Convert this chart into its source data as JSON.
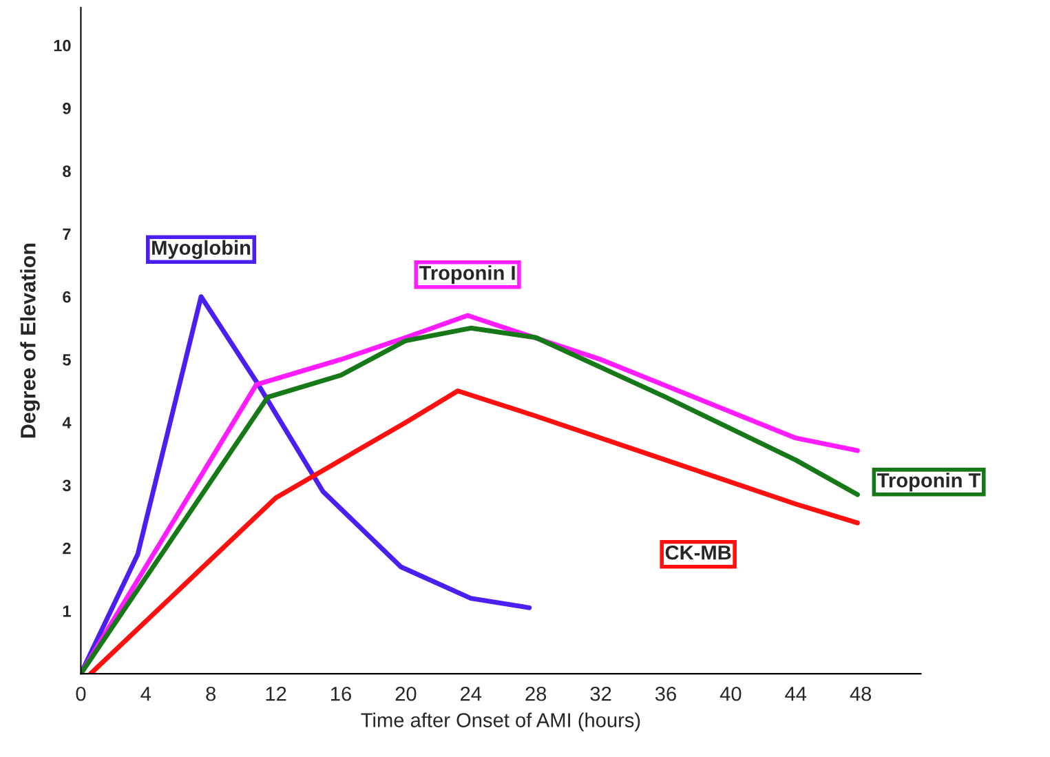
{
  "chart_data": {
    "type": "line",
    "xlabel": "Time after Onset of AMI (hours)",
    "ylabel": "Degree of Elevation",
    "xlim": [
      0,
      51.7
    ],
    "ylim": [
      0,
      10.6
    ],
    "xticks": [
      0,
      4,
      8,
      12,
      16,
      20,
      24,
      28,
      32,
      36,
      40,
      44,
      48
    ],
    "yticks": [
      1,
      2,
      3,
      4,
      5,
      6,
      7,
      8,
      9,
      10
    ],
    "grid": false,
    "legend": false,
    "series": [
      {
        "name": "Myoglobin",
        "color": "#4b1ff0",
        "x": [
          0,
          3.5,
          7.4,
          10.8,
          14.9,
          19.7,
          24,
          27.6
        ],
        "values": [
          0,
          1.9,
          6,
          4.65,
          2.9,
          1.7,
          1.2,
          1.05
        ]
      },
      {
        "name": "Troponin I",
        "color": "#ff1cff",
        "x": [
          0,
          10.8,
          16,
          20,
          23.8,
          32,
          44,
          47.8
        ],
        "values": [
          0,
          4.6,
          5.0,
          5.35,
          5.7,
          5.0,
          3.75,
          3.55
        ]
      },
      {
        "name": "Troponin T",
        "color": "#167816",
        "x": [
          0,
          11.5,
          16,
          20,
          24,
          28,
          36,
          44,
          47.8
        ],
        "values": [
          0,
          4.4,
          4.75,
          5.3,
          5.5,
          5.35,
          4.4,
          3.4,
          2.85
        ]
      },
      {
        "name": "CK-MB",
        "color": "#ff1010",
        "x": [
          0.6,
          12,
          20,
          23.2,
          28,
          36,
          44,
          47.8
        ],
        "values": [
          0,
          2.8,
          4.0,
          4.5,
          4.1,
          3.4,
          2.7,
          2.4
        ]
      }
    ]
  }
}
